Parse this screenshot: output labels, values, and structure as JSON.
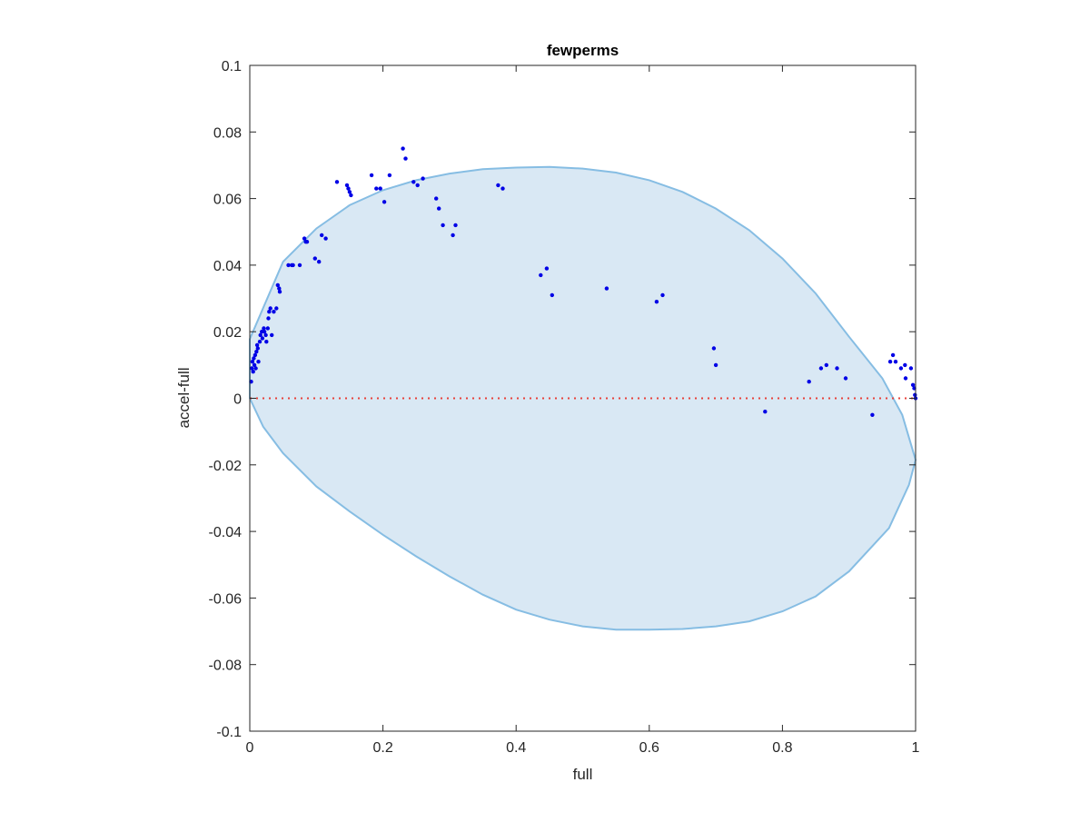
{
  "chart_data": {
    "type": "scatter",
    "title": "fewperms",
    "xlabel": "full",
    "ylabel": "accel-full",
    "xlim": [
      0,
      1
    ],
    "ylim": [
      -0.1,
      0.1
    ],
    "xticks": [
      0,
      0.2,
      0.4,
      0.6,
      0.8,
      1
    ],
    "xtick_labels": [
      "0",
      "0.2",
      "0.4",
      "0.6",
      "0.8",
      "1"
    ],
    "yticks": [
      -0.1,
      -0.08,
      -0.06,
      -0.04,
      -0.02,
      0,
      0.02,
      0.04,
      0.06,
      0.08,
      0.1
    ],
    "ytick_labels": [
      "-0.1",
      "-0.08",
      "-0.06",
      "-0.04",
      "-0.02",
      "0",
      "0.02",
      "0.04",
      "0.06",
      "0.08",
      "0.1"
    ],
    "grid": false,
    "reference_line": {
      "y": 0,
      "style": "dotted",
      "color": "#e8413a"
    },
    "region": {
      "shape": "ellipse",
      "fill": "#d9e8f4",
      "edge": "#86bde3",
      "points": [
        [
          0.0,
          0.0178
        ],
        [
          0.05,
          0.041
        ],
        [
          0.1,
          0.051
        ],
        [
          0.15,
          0.058
        ],
        [
          0.2,
          0.0625
        ],
        [
          0.25,
          0.0655
        ],
        [
          0.3,
          0.0675
        ],
        [
          0.35,
          0.0688
        ],
        [
          0.4,
          0.0693
        ],
        [
          0.45,
          0.0695
        ],
        [
          0.5,
          0.069
        ],
        [
          0.55,
          0.0678
        ],
        [
          0.6,
          0.0655
        ],
        [
          0.65,
          0.062
        ],
        [
          0.7,
          0.057
        ],
        [
          0.75,
          0.0505
        ],
        [
          0.8,
          0.042
        ],
        [
          0.85,
          0.0315
        ],
        [
          0.9,
          0.0185
        ],
        [
          0.95,
          0.006
        ],
        [
          0.98,
          -0.005
        ],
        [
          1.0,
          -0.0185
        ],
        [
          0.99,
          -0.026
        ],
        [
          0.96,
          -0.039
        ],
        [
          0.9,
          -0.052
        ],
        [
          0.85,
          -0.0595
        ],
        [
          0.8,
          -0.064
        ],
        [
          0.75,
          -0.067
        ],
        [
          0.7,
          -0.0685
        ],
        [
          0.65,
          -0.0693
        ],
        [
          0.6,
          -0.0695
        ],
        [
          0.55,
          -0.0695
        ],
        [
          0.5,
          -0.0685
        ],
        [
          0.45,
          -0.0665
        ],
        [
          0.4,
          -0.0635
        ],
        [
          0.35,
          -0.059
        ],
        [
          0.3,
          -0.0535
        ],
        [
          0.25,
          -0.0475
        ],
        [
          0.2,
          -0.041
        ],
        [
          0.15,
          -0.034
        ],
        [
          0.1,
          -0.0265
        ],
        [
          0.05,
          -0.0165
        ],
        [
          0.02,
          -0.0085
        ],
        [
          0.0,
          0.0
        ]
      ]
    },
    "series": [
      {
        "color": "#0000e6",
        "points": [
          [
            0.002,
            0.005
          ],
          [
            0.003,
            0.009
          ],
          [
            0.004,
            0.011
          ],
          [
            0.005,
            0.008
          ],
          [
            0.006,
            0.012
          ],
          [
            0.007,
            0.01
          ],
          [
            0.008,
            0.013
          ],
          [
            0.009,
            0.009
          ],
          [
            0.01,
            0.014
          ],
          [
            0.011,
            0.016
          ],
          [
            0.012,
            0.015
          ],
          [
            0.013,
            0.011
          ],
          [
            0.015,
            0.017
          ],
          [
            0.016,
            0.019
          ],
          [
            0.018,
            0.02
          ],
          [
            0.019,
            0.018
          ],
          [
            0.021,
            0.021
          ],
          [
            0.022,
            0.02
          ],
          [
            0.024,
            0.019
          ],
          [
            0.025,
            0.017
          ],
          [
            0.027,
            0.021
          ],
          [
            0.028,
            0.024
          ],
          [
            0.029,
            0.026
          ],
          [
            0.031,
            0.027
          ],
          [
            0.033,
            0.019
          ],
          [
            0.036,
            0.026
          ],
          [
            0.04,
            0.027
          ],
          [
            0.042,
            0.034
          ],
          [
            0.044,
            0.033
          ],
          [
            0.045,
            0.032
          ],
          [
            0.058,
            0.04
          ],
          [
            0.063,
            0.04
          ],
          [
            0.065,
            0.04
          ],
          [
            0.075,
            0.04
          ],
          [
            0.082,
            0.048
          ],
          [
            0.084,
            0.047
          ],
          [
            0.086,
            0.047
          ],
          [
            0.098,
            0.042
          ],
          [
            0.104,
            0.041
          ],
          [
            0.108,
            0.049
          ],
          [
            0.114,
            0.048
          ],
          [
            0.131,
            0.065
          ],
          [
            0.146,
            0.064
          ],
          [
            0.148,
            0.063
          ],
          [
            0.15,
            0.062
          ],
          [
            0.152,
            0.061
          ],
          [
            0.183,
            0.067
          ],
          [
            0.19,
            0.063
          ],
          [
            0.196,
            0.063
          ],
          [
            0.202,
            0.059
          ],
          [
            0.21,
            0.067
          ],
          [
            0.23,
            0.075
          ],
          [
            0.234,
            0.072
          ],
          [
            0.246,
            0.065
          ],
          [
            0.252,
            0.064
          ],
          [
            0.26,
            0.066
          ],
          [
            0.28,
            0.06
          ],
          [
            0.284,
            0.057
          ],
          [
            0.29,
            0.052
          ],
          [
            0.305,
            0.049
          ],
          [
            0.309,
            0.052
          ],
          [
            0.373,
            0.064
          ],
          [
            0.38,
            0.063
          ],
          [
            0.437,
            0.037
          ],
          [
            0.446,
            0.039
          ],
          [
            0.454,
            0.031
          ],
          [
            0.536,
            0.033
          ],
          [
            0.611,
            0.029
          ],
          [
            0.62,
            0.031
          ],
          [
            0.697,
            0.015
          ],
          [
            0.7,
            0.01
          ],
          [
            0.774,
            -0.004
          ],
          [
            0.84,
            0.005
          ],
          [
            0.858,
            0.009
          ],
          [
            0.866,
            0.01
          ],
          [
            0.882,
            0.009
          ],
          [
            0.895,
            0.006
          ],
          [
            0.935,
            -0.005
          ],
          [
            0.962,
            0.011
          ],
          [
            0.966,
            0.013
          ],
          [
            0.97,
            0.011
          ],
          [
            0.978,
            0.009
          ],
          [
            0.984,
            0.01
          ],
          [
            0.985,
            0.006
          ],
          [
            0.993,
            0.009
          ],
          [
            0.996,
            0.004
          ],
          [
            0.998,
            0.003
          ],
          [
            0.999,
            0.001
          ],
          [
            1.0,
            0.0
          ]
        ]
      }
    ]
  }
}
